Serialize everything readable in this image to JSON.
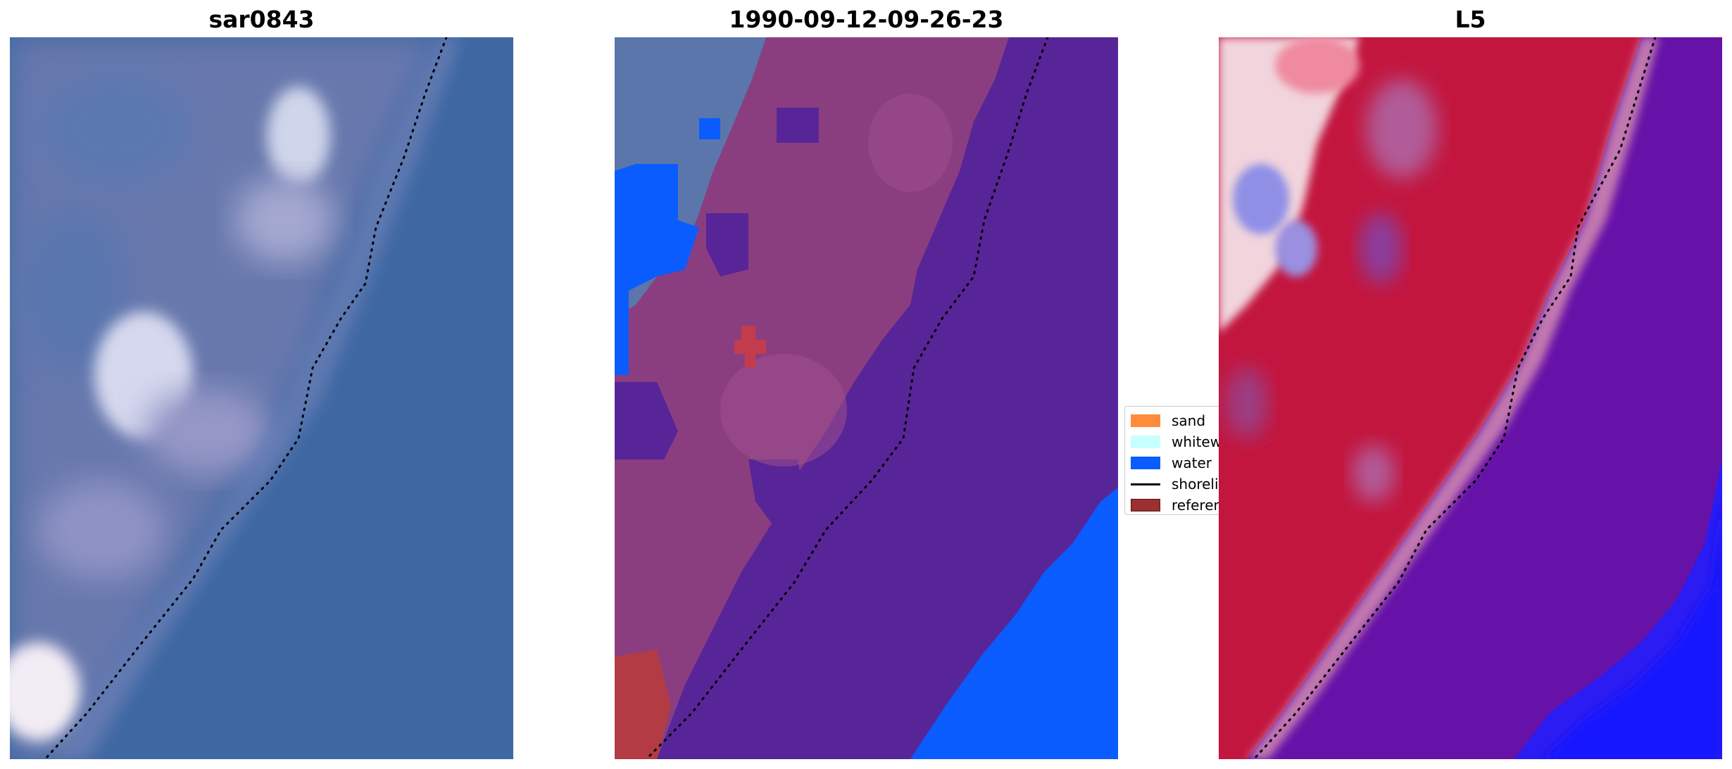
{
  "panels": {
    "left": {
      "title": "sar0843"
    },
    "middle": {
      "title": "1990-09-12-09-26-23"
    },
    "right": {
      "title": "L5"
    }
  },
  "legend": {
    "items": [
      {
        "label": "sand",
        "kind": "patch",
        "color": "#ff8c3a"
      },
      {
        "label": "whitewater",
        "kind": "patch",
        "color": "#c8ffff"
      },
      {
        "label": "water",
        "kind": "patch",
        "color": "#0a5cff"
      },
      {
        "label": "shoreline",
        "kind": "line",
        "color": "#000000"
      },
      {
        "label": "reference",
        "kind": "patch",
        "color": "#9c2f2f"
      }
    ]
  },
  "colors": {
    "sea_blue": "#3c68a4",
    "land_mauve": "#8c3f80",
    "water_purple": "#572597",
    "water_class_blue": "#0a5cff",
    "index_red": "#c2163f",
    "index_purple": "#6612a8",
    "shoreline": "#000000"
  }
}
